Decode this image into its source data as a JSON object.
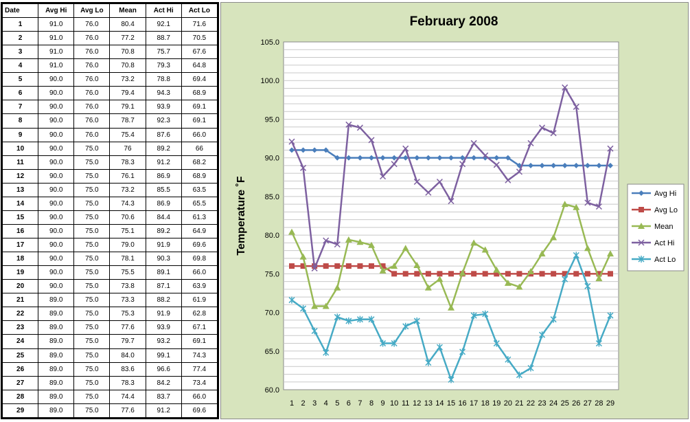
{
  "table": {
    "headers": [
      "Date",
      "Avg Hi",
      "Avg Lo",
      "Mean",
      "Act Hi",
      "Act Lo"
    ],
    "rows": [
      [
        "1",
        "91.0",
        "76.0",
        "80.4",
        "92.1",
        "71.6"
      ],
      [
        "2",
        "91.0",
        "76.0",
        "77.2",
        "88.7",
        "70.5"
      ],
      [
        "3",
        "91.0",
        "76.0",
        "70.8",
        "75.7",
        "67.6"
      ],
      [
        "4",
        "91.0",
        "76.0",
        "70.8",
        "79.3",
        "64.8"
      ],
      [
        "5",
        "90.0",
        "76.0",
        "73.2",
        "78.8",
        "69.4"
      ],
      [
        "6",
        "90.0",
        "76.0",
        "79.4",
        "94.3",
        "68.9"
      ],
      [
        "7",
        "90.0",
        "76.0",
        "79.1",
        "93.9",
        "69.1"
      ],
      [
        "8",
        "90.0",
        "76.0",
        "78.7",
        "92.3",
        "69.1"
      ],
      [
        "9",
        "90.0",
        "76.0",
        "75.4",
        "87.6",
        "66.0"
      ],
      [
        "10",
        "90.0",
        "75.0",
        "76",
        "89.2",
        "66"
      ],
      [
        "11",
        "90.0",
        "75.0",
        "78.3",
        "91.2",
        "68.2"
      ],
      [
        "12",
        "90.0",
        "75.0",
        "76.1",
        "86.9",
        "68.9"
      ],
      [
        "13",
        "90.0",
        "75.0",
        "73.2",
        "85.5",
        "63.5"
      ],
      [
        "14",
        "90.0",
        "75.0",
        "74.3",
        "86.9",
        "65.5"
      ],
      [
        "15",
        "90.0",
        "75.0",
        "70.6",
        "84.4",
        "61.3"
      ],
      [
        "16",
        "90.0",
        "75.0",
        "75.1",
        "89.2",
        "64.9"
      ],
      [
        "17",
        "90.0",
        "75.0",
        "79.0",
        "91.9",
        "69.6"
      ],
      [
        "18",
        "90.0",
        "75.0",
        "78.1",
        "90.3",
        "69.8"
      ],
      [
        "19",
        "90.0",
        "75.0",
        "75.5",
        "89.1",
        "66.0"
      ],
      [
        "20",
        "90.0",
        "75.0",
        "73.8",
        "87.1",
        "63.9"
      ],
      [
        "21",
        "89.0",
        "75.0",
        "73.3",
        "88.2",
        "61.9"
      ],
      [
        "22",
        "89.0",
        "75.0",
        "75.3",
        "91.9",
        "62.8"
      ],
      [
        "23",
        "89.0",
        "75.0",
        "77.6",
        "93.9",
        "67.1"
      ],
      [
        "24",
        "89.0",
        "75.0",
        "79.7",
        "93.2",
        "69.1"
      ],
      [
        "25",
        "89.0",
        "75.0",
        "84.0",
        "99.1",
        "74.3"
      ],
      [
        "26",
        "89.0",
        "75.0",
        "83.6",
        "96.6",
        "77.4"
      ],
      [
        "27",
        "89.0",
        "75.0",
        "78.3",
        "84.2",
        "73.4"
      ],
      [
        "28",
        "89.0",
        "75.0",
        "74.4",
        "83.7",
        "66.0"
      ],
      [
        "29",
        "89.0",
        "75.0",
        "77.6",
        "91.2",
        "69.6"
      ]
    ]
  },
  "chart_data": {
    "type": "line",
    "title": "February 2008",
    "xlabel": "",
    "ylabel": "Temperature ˚F",
    "ylim": [
      60,
      105
    ],
    "yticks": [
      "60.0",
      "65.0",
      "70.0",
      "75.0",
      "80.0",
      "85.0",
      "90.0",
      "95.0",
      "100.0",
      "105.0"
    ],
    "x": [
      "1",
      "2",
      "3",
      "4",
      "5",
      "6",
      "7",
      "8",
      "9",
      "10",
      "11",
      "12",
      "13",
      "14",
      "15",
      "16",
      "17",
      "18",
      "19",
      "20",
      "21",
      "22",
      "23",
      "24",
      "25",
      "26",
      "27",
      "28",
      "29"
    ],
    "grid": true,
    "legend_position": "right",
    "series": [
      {
        "name": "Avg Hi",
        "color": "#4a7ebb",
        "marker": "diamond",
        "values": [
          91,
          91,
          91,
          91,
          90,
          90,
          90,
          90,
          90,
          90,
          90,
          90,
          90,
          90,
          90,
          90,
          90,
          90,
          90,
          90,
          89,
          89,
          89,
          89,
          89,
          89,
          89,
          89,
          89
        ]
      },
      {
        "name": "Avg Lo",
        "color": "#be4b48",
        "marker": "square",
        "values": [
          76,
          76,
          76,
          76,
          76,
          76,
          76,
          76,
          76,
          75,
          75,
          75,
          75,
          75,
          75,
          75,
          75,
          75,
          75,
          75,
          75,
          75,
          75,
          75,
          75,
          75,
          75,
          75,
          75
        ]
      },
      {
        "name": "Mean",
        "color": "#98b954",
        "marker": "triangle",
        "values": [
          80.4,
          77.2,
          70.8,
          70.8,
          73.2,
          79.4,
          79.1,
          78.7,
          75.4,
          76,
          78.3,
          76.1,
          73.2,
          74.3,
          70.6,
          75.1,
          79.0,
          78.1,
          75.5,
          73.8,
          73.3,
          75.3,
          77.6,
          79.7,
          84.0,
          83.6,
          78.3,
          74.4,
          77.6
        ]
      },
      {
        "name": "Act Hi",
        "color": "#7d60a0",
        "marker": "x",
        "values": [
          92.1,
          88.7,
          75.7,
          79.3,
          78.8,
          94.3,
          93.9,
          92.3,
          87.6,
          89.2,
          91.2,
          86.9,
          85.5,
          86.9,
          84.4,
          89.2,
          91.9,
          90.3,
          89.1,
          87.1,
          88.2,
          91.9,
          93.9,
          93.2,
          99.1,
          96.6,
          84.2,
          83.7,
          91.2
        ]
      },
      {
        "name": "Act Lo",
        "color": "#46aac5",
        "marker": "star",
        "values": [
          71.6,
          70.5,
          67.6,
          64.8,
          69.4,
          68.9,
          69.1,
          69.1,
          66.0,
          66,
          68.2,
          68.9,
          63.5,
          65.5,
          61.3,
          64.9,
          69.6,
          69.8,
          66.0,
          63.9,
          61.9,
          62.8,
          67.1,
          69.1,
          74.3,
          77.4,
          73.4,
          66.0,
          69.6
        ]
      }
    ]
  }
}
